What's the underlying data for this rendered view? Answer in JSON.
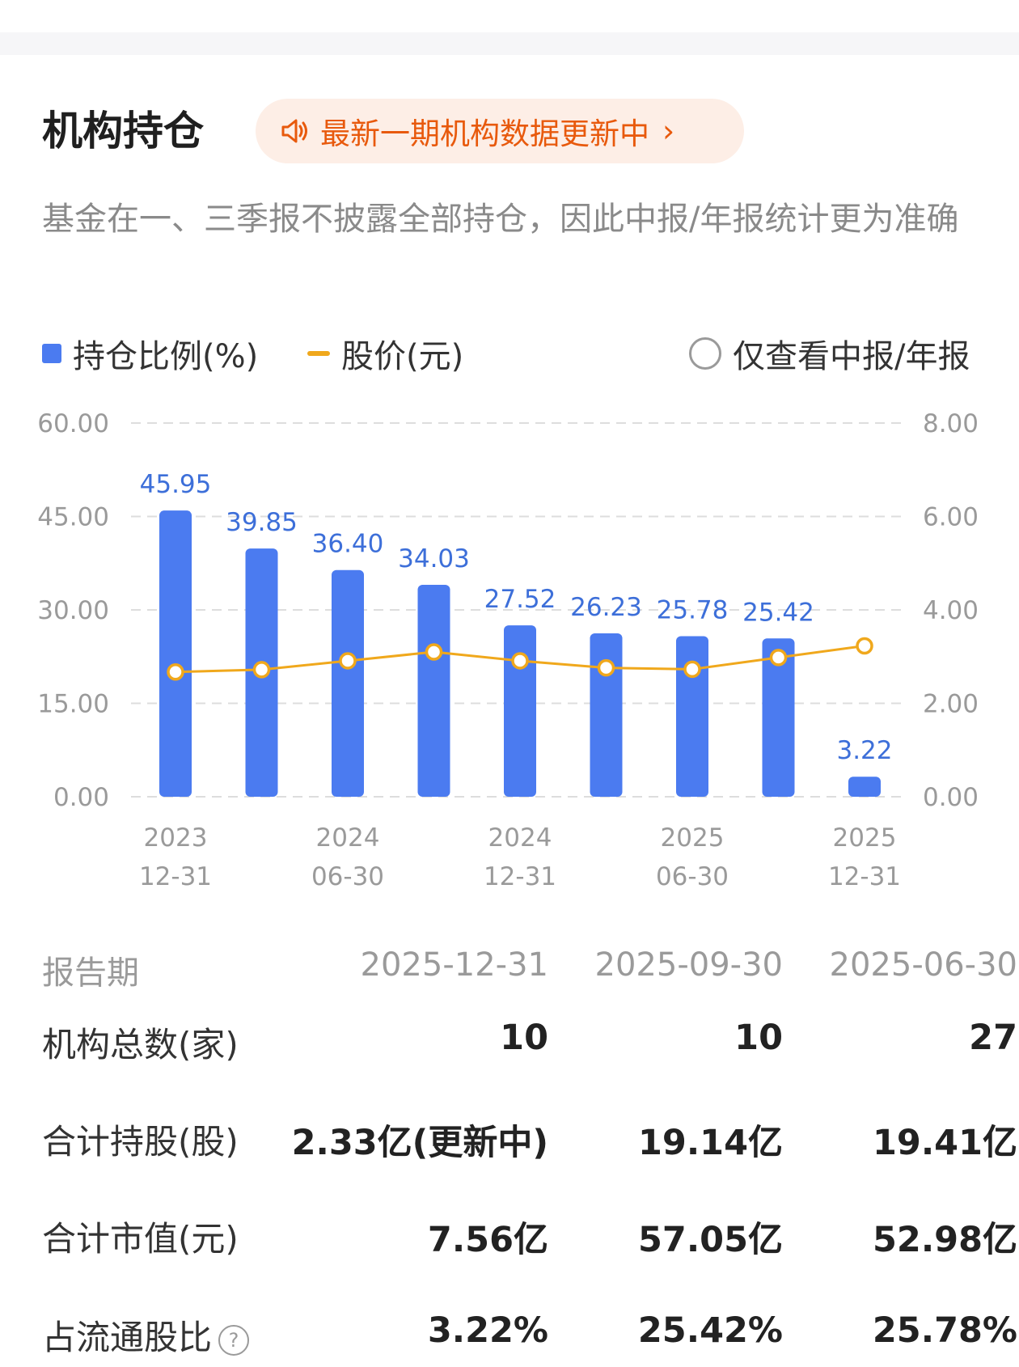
{
  "header": {
    "title": "机构持仓",
    "notice": "最新一期机构数据更新中",
    "subtitle": "基金在一、三季报不披露全部持仓，因此中报/年报统计更为准确"
  },
  "legend": {
    "bar_label": "持仓比例(%)",
    "line_label": "股价(元)",
    "toggle_label": "仅查看中报/年报"
  },
  "colors": {
    "bar": "#4b7bf0",
    "line": "#f0a81c",
    "accent": "#e8590c",
    "label": "#3d6fd9"
  },
  "chart_data": {
    "type": "bar",
    "categories": [
      "2023-12-31",
      "2024-03-31",
      "2024-06-30",
      "2024-09-30",
      "2024-12-31",
      "2025-03-31",
      "2025-06-30",
      "2025-09-30",
      "2025-12-31"
    ],
    "x_tick_labels": [
      {
        "index": 0,
        "year": "2023",
        "date": "12-31"
      },
      {
        "index": 2,
        "year": "2024",
        "date": "06-30"
      },
      {
        "index": 4,
        "year": "2024",
        "date": "12-31"
      },
      {
        "index": 6,
        "year": "2025",
        "date": "06-30"
      },
      {
        "index": 8,
        "year": "2025",
        "date": "12-31"
      }
    ],
    "series": [
      {
        "name": "持仓比例(%)",
        "type": "bar",
        "axis": "left",
        "values": [
          45.95,
          39.85,
          36.4,
          34.03,
          27.52,
          26.23,
          25.78,
          25.42,
          3.22
        ],
        "labels": [
          "45.95",
          "39.85",
          "36.40",
          "34.03",
          "27.52",
          "26.23",
          "25.78",
          "25.42",
          "3.22"
        ]
      },
      {
        "name": "股价(元)",
        "type": "line",
        "axis": "right",
        "values": [
          2.67,
          2.72,
          2.91,
          3.1,
          2.91,
          2.76,
          2.73,
          2.98,
          3.23
        ]
      }
    ],
    "left_axis": {
      "ylim": [
        0,
        60
      ],
      "ticks": [
        "0.00",
        "15.00",
        "30.00",
        "45.00",
        "60.00"
      ]
    },
    "right_axis": {
      "ylim": [
        0,
        8
      ],
      "ticks": [
        "0.00",
        "2.00",
        "4.00",
        "6.00",
        "8.00"
      ]
    },
    "grid": true,
    "legend_position": "top-left"
  },
  "table": {
    "header": {
      "label": "报告期",
      "cols": [
        "2025-12-31",
        "2025-09-30",
        "2025-06-30"
      ]
    },
    "rows": [
      {
        "label": "机构总数(家)",
        "values": [
          "10",
          "10",
          "27"
        ]
      },
      {
        "label": "合计持股(股)",
        "values": [
          "2.33亿(更新中)",
          "19.14亿",
          "19.41亿"
        ]
      },
      {
        "label": "合计市值(元)",
        "values": [
          "7.56亿",
          "57.05亿",
          "52.98亿"
        ]
      },
      {
        "label": "占流通股比",
        "values": [
          "3.22%",
          "25.42%",
          "25.78%"
        ],
        "icon": "question-icon"
      }
    ]
  }
}
